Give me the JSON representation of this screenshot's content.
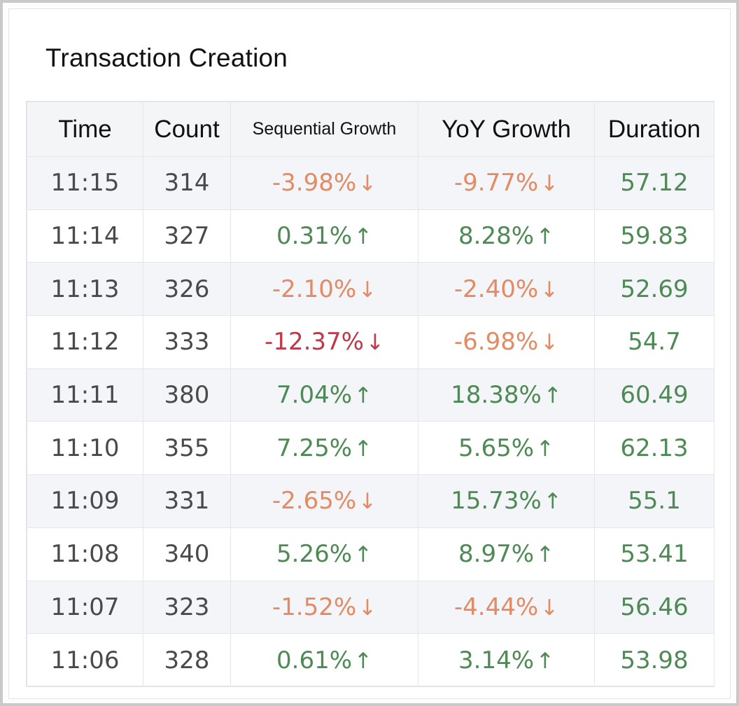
{
  "title": "Transaction Creation",
  "table": {
    "headers": [
      "Time",
      "Count",
      "Sequential Growth",
      "YoY Growth",
      "Duration"
    ],
    "rows": [
      {
        "time": "11:15",
        "count": "314",
        "seq": "-3.98%",
        "seq_dir": "down",
        "yoy": "-9.77%",
        "yoy_dir": "down",
        "duration": "57.12"
      },
      {
        "time": "11:14",
        "count": "327",
        "seq": "0.31%",
        "seq_dir": "up",
        "yoy": "8.28%",
        "yoy_dir": "up",
        "duration": "59.83"
      },
      {
        "time": "11:13",
        "count": "326",
        "seq": "-2.10%",
        "seq_dir": "down",
        "yoy": "-2.40%",
        "yoy_dir": "down",
        "duration": "52.69"
      },
      {
        "time": "11:12",
        "count": "333",
        "seq": "-12.37%",
        "seq_dir": "down",
        "yoy": "-6.98%",
        "yoy_dir": "down",
        "duration": "54.7"
      },
      {
        "time": "11:11",
        "count": "380",
        "seq": "7.04%",
        "seq_dir": "up",
        "yoy": "18.38%",
        "yoy_dir": "up",
        "duration": "60.49"
      },
      {
        "time": "11:10",
        "count": "355",
        "seq": "7.25%",
        "seq_dir": "up",
        "yoy": "5.65%",
        "yoy_dir": "up",
        "duration": "62.13"
      },
      {
        "time": "11:09",
        "count": "331",
        "seq": "-2.65%",
        "seq_dir": "down",
        "yoy": "15.73%",
        "yoy_dir": "up",
        "duration": "55.1"
      },
      {
        "time": "11:08",
        "count": "340",
        "seq": "5.26%",
        "seq_dir": "up",
        "yoy": "8.97%",
        "yoy_dir": "up",
        "duration": "53.41"
      },
      {
        "time": "11:07",
        "count": "323",
        "seq": "-1.52%",
        "seq_dir": "down",
        "yoy": "-4.44%",
        "yoy_dir": "down",
        "duration": "56.46"
      },
      {
        "time": "11:06",
        "count": "328",
        "seq": "0.61%",
        "seq_dir": "up",
        "yoy": "3.14%",
        "yoy_dir": "up",
        "duration": "53.98"
      }
    ]
  },
  "icons": {
    "up": "arrow-up-icon",
    "down": "arrow-down-icon"
  },
  "colors": {
    "positive": "#4e8a55",
    "negative": "#e58a62",
    "strong_negative": "#c0394a",
    "header_bg": "#f4f5f7",
    "row_shade": "#f3f5f8"
  }
}
